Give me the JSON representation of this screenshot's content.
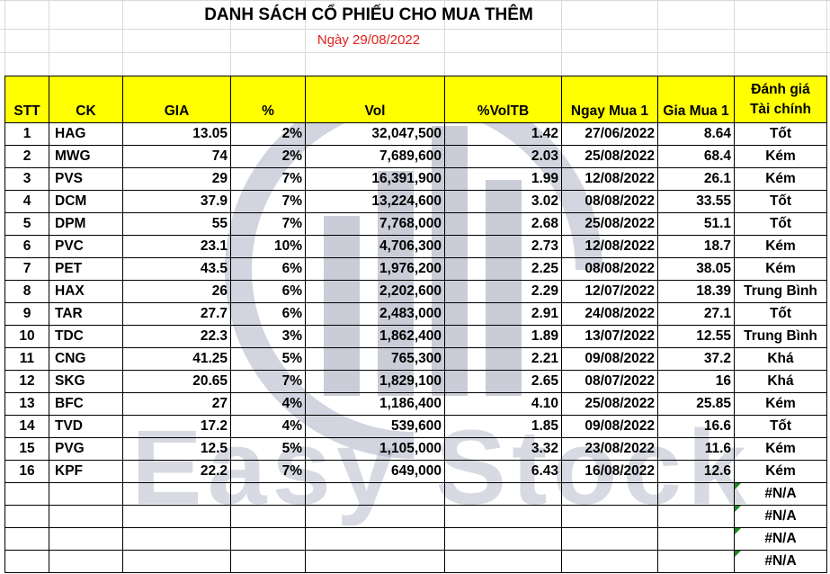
{
  "title": "DANH SÁCH CỔ PHIẾU CHO MUA THÊM",
  "date": "Ngày 29/08/2022",
  "watermark_text": "Easy Stock",
  "colors": {
    "header_bg": "#ffff00",
    "date_text": "#e0201b",
    "error_indicator": "#1a8a1a"
  },
  "headers": {
    "stt": "STT",
    "ck": "CK",
    "gia": "GIA",
    "pct": "%",
    "vol": "Vol",
    "pct_vol_tb": "%VolTB",
    "ngay_mua_1": "Ngay Mua 1",
    "gia_mua_1": "Gia Mua 1",
    "danh_gia_line1": "Đánh giá",
    "danh_gia_line2": "Tài chính"
  },
  "rows": [
    {
      "stt": "1",
      "ck": "HAG",
      "gia": "13.05",
      "pct": "2%",
      "vol": "32,047,500",
      "voltb": "1.42",
      "ngay": "27/06/2022",
      "giamua": "8.64",
      "danhgia": "Tốt"
    },
    {
      "stt": "2",
      "ck": "MWG",
      "gia": "74",
      "pct": "2%",
      "vol": "7,689,600",
      "voltb": "2.03",
      "ngay": "25/08/2022",
      "giamua": "68.4",
      "danhgia": "Kém"
    },
    {
      "stt": "3",
      "ck": "PVS",
      "gia": "29",
      "pct": "7%",
      "vol": "16,391,900",
      "voltb": "1.99",
      "ngay": "12/08/2022",
      "giamua": "26.1",
      "danhgia": "Kém"
    },
    {
      "stt": "4",
      "ck": "DCM",
      "gia": "37.9",
      "pct": "7%",
      "vol": "13,224,600",
      "voltb": "3.02",
      "ngay": "08/08/2022",
      "giamua": "33.55",
      "danhgia": "Tốt"
    },
    {
      "stt": "5",
      "ck": "DPM",
      "gia": "55",
      "pct": "7%",
      "vol": "7,768,000",
      "voltb": "2.68",
      "ngay": "25/08/2022",
      "giamua": "51.1",
      "danhgia": "Tốt"
    },
    {
      "stt": "6",
      "ck": "PVC",
      "gia": "23.1",
      "pct": "10%",
      "vol": "4,706,300",
      "voltb": "2.73",
      "ngay": "12/08/2022",
      "giamua": "18.7",
      "danhgia": "Kém"
    },
    {
      "stt": "7",
      "ck": "PET",
      "gia": "43.5",
      "pct": "6%",
      "vol": "1,976,200",
      "voltb": "2.25",
      "ngay": "08/08/2022",
      "giamua": "38.05",
      "danhgia": "Kém"
    },
    {
      "stt": "8",
      "ck": "HAX",
      "gia": "26",
      "pct": "6%",
      "vol": "2,202,600",
      "voltb": "2.29",
      "ngay": "12/07/2022",
      "giamua": "18.39",
      "danhgia": "Trung Bình"
    },
    {
      "stt": "9",
      "ck": "TAR",
      "gia": "27.7",
      "pct": "6%",
      "vol": "2,483,000",
      "voltb": "2.91",
      "ngay": "24/08/2022",
      "giamua": "27.1",
      "danhgia": "Tốt"
    },
    {
      "stt": "10",
      "ck": "TDC",
      "gia": "22.3",
      "pct": "3%",
      "vol": "1,862,400",
      "voltb": "1.89",
      "ngay": "13/07/2022",
      "giamua": "12.55",
      "danhgia": "Trung Bình"
    },
    {
      "stt": "11",
      "ck": "CNG",
      "gia": "41.25",
      "pct": "5%",
      "vol": "765,300",
      "voltb": "2.21",
      "ngay": "09/08/2022",
      "giamua": "37.2",
      "danhgia": "Khá"
    },
    {
      "stt": "12",
      "ck": "SKG",
      "gia": "20.65",
      "pct": "7%",
      "vol": "1,829,100",
      "voltb": "2.65",
      "ngay": "08/07/2022",
      "giamua": "16",
      "danhgia": "Khá"
    },
    {
      "stt": "13",
      "ck": "BFC",
      "gia": "27",
      "pct": "4%",
      "vol": "1,186,400",
      "voltb": "4.10",
      "ngay": "25/08/2022",
      "giamua": "25.85",
      "danhgia": "Kém"
    },
    {
      "stt": "14",
      "ck": "TVD",
      "gia": "17.2",
      "pct": "4%",
      "vol": "539,600",
      "voltb": "1.85",
      "ngay": "09/08/2022",
      "giamua": "16.6",
      "danhgia": "Tốt"
    },
    {
      "stt": "15",
      "ck": "PVG",
      "gia": "12.5",
      "pct": "5%",
      "vol": "1,105,000",
      "voltb": "3.32",
      "ngay": "23/08/2022",
      "giamua": "11.6",
      "danhgia": "Kém"
    },
    {
      "stt": "16",
      "ck": "KPF",
      "gia": "22.2",
      "pct": "7%",
      "vol": "649,000",
      "voltb": "6.43",
      "ngay": "16/08/2022",
      "giamua": "12.6",
      "danhgia": "Kém"
    }
  ],
  "empty_rows": [
    {
      "danhgia": "#N/A"
    },
    {
      "danhgia": "#N/A"
    },
    {
      "danhgia": "#N/A"
    },
    {
      "danhgia": "#N/A"
    }
  ]
}
